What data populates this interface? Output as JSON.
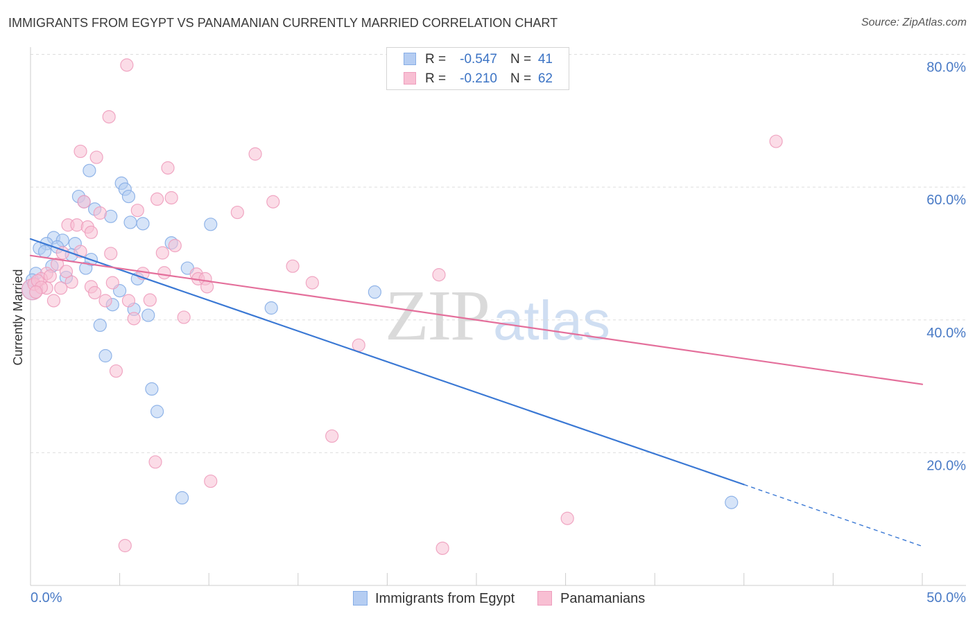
{
  "header": {
    "source": "Source: ZipAtlas.com"
  },
  "watermark": {
    "zip": "ZIP",
    "atlas": "atlas"
  },
  "stats_legend": [
    {
      "r_label": "R =",
      "r_value": "-0.547",
      "n_label": "N =",
      "n_value": "41"
    },
    {
      "r_label": "R =",
      "r_value": "-0.210",
      "n_label": "N =",
      "n_value": "62"
    }
  ],
  "colors": {
    "axis_label": "#4a7bc6",
    "axis_line": "#cccccc",
    "grid": "#dddddd",
    "text": "#333333"
  },
  "chart_data": {
    "type": "scatter",
    "title": "IMMIGRANTS FROM EGYPT VS PANAMANIAN CURRENTLY MARRIED CORRELATION CHART",
    "xlabel": "",
    "ylabel": "Currently Married",
    "xlim": [
      0,
      50
    ],
    "ylim": [
      0,
      81.1
    ],
    "grid": true,
    "x_ticks": [
      0,
      5,
      10,
      15,
      20,
      25,
      30,
      35,
      40,
      45,
      50
    ],
    "x_tick_labels": [
      {
        "value": 0,
        "label": "0.0%"
      },
      {
        "value": 50,
        "label": "50.0%"
      }
    ],
    "y_ticks": [
      {
        "value": 80,
        "label": "80.0%"
      },
      {
        "value": 60,
        "label": "60.0%"
      },
      {
        "value": 40,
        "label": "40.0%"
      },
      {
        "value": 20,
        "label": "20.0%"
      }
    ],
    "series": [
      {
        "name": "Immigrants from Egypt",
        "fill": "#b5cdf2",
        "stroke": "#86ade6",
        "line": "#3a78d4",
        "points": [
          [
            0.1,
            44.6
          ],
          [
            3.3,
            62.5
          ],
          [
            5.1,
            60.6
          ],
          [
            5.3,
            59.7
          ],
          [
            5.5,
            58.6
          ],
          [
            2.7,
            58.6
          ],
          [
            3.0,
            57.8
          ],
          [
            3.6,
            56.7
          ],
          [
            4.5,
            55.6
          ],
          [
            5.6,
            54.7
          ],
          [
            6.3,
            54.5
          ],
          [
            10.1,
            54.4
          ],
          [
            1.3,
            52.4
          ],
          [
            1.8,
            52.0
          ],
          [
            0.9,
            51.5
          ],
          [
            2.5,
            51.5
          ],
          [
            7.9,
            51.6
          ],
          [
            0.5,
            50.8
          ],
          [
            1.5,
            51.0
          ],
          [
            0.8,
            50.3
          ],
          [
            2.3,
            49.8
          ],
          [
            3.4,
            49.1
          ],
          [
            1.2,
            48.1
          ],
          [
            3.1,
            47.8
          ],
          [
            8.8,
            47.8
          ],
          [
            0.3,
            47.0
          ],
          [
            2.0,
            46.4
          ],
          [
            6.0,
            46.2
          ],
          [
            0.1,
            46.0
          ],
          [
            5.0,
            44.4
          ],
          [
            19.3,
            44.2
          ],
          [
            4.6,
            42.3
          ],
          [
            5.8,
            41.6
          ],
          [
            13.5,
            41.8
          ],
          [
            6.6,
            40.7
          ],
          [
            3.9,
            39.2
          ],
          [
            4.2,
            34.6
          ],
          [
            6.8,
            29.6
          ],
          [
            7.1,
            26.2
          ],
          [
            8.5,
            13.2
          ],
          [
            39.3,
            12.5
          ]
        ],
        "trend": {
          "solid": [
            [
              0,
              52.2
            ],
            [
              40,
              15.2
            ]
          ],
          "dashed": [
            [
              40,
              15.2
            ],
            [
              50,
              5.9
            ]
          ]
        }
      },
      {
        "name": "Panamanians",
        "fill": "#f8bfd3",
        "stroke": "#ee9dbd",
        "line": "#e46f9b",
        "points": [
          [
            0.1,
            44.6
          ],
          [
            5.4,
            78.4
          ],
          [
            4.4,
            70.6
          ],
          [
            41.8,
            66.9
          ],
          [
            2.8,
            65.4
          ],
          [
            3.7,
            64.5
          ],
          [
            12.6,
            65.0
          ],
          [
            7.7,
            62.9
          ],
          [
            7.9,
            58.4
          ],
          [
            7.1,
            58.2
          ],
          [
            13.6,
            57.8
          ],
          [
            3.0,
            57.8
          ],
          [
            3.9,
            56.1
          ],
          [
            6.0,
            56.5
          ],
          [
            11.6,
            56.2
          ],
          [
            2.1,
            54.3
          ],
          [
            2.6,
            54.3
          ],
          [
            3.2,
            54.0
          ],
          [
            3.4,
            53.2
          ],
          [
            8.1,
            51.2
          ],
          [
            2.8,
            50.3
          ],
          [
            4.5,
            50.0
          ],
          [
            7.4,
            50.1
          ],
          [
            1.8,
            50.1
          ],
          [
            1.5,
            48.4
          ],
          [
            14.7,
            48.1
          ],
          [
            0.9,
            47.0
          ],
          [
            6.3,
            47.0
          ],
          [
            7.5,
            47.1
          ],
          [
            9.3,
            46.9
          ],
          [
            22.9,
            46.8
          ],
          [
            9.4,
            46.2
          ],
          [
            9.8,
            46.2
          ],
          [
            0.6,
            46.2
          ],
          [
            2.3,
            45.7
          ],
          [
            4.6,
            45.6
          ],
          [
            15.8,
            45.6
          ],
          [
            0.2,
            45.4
          ],
          [
            9.9,
            45.0
          ],
          [
            3.4,
            45.0
          ],
          [
            0.9,
            44.8
          ],
          [
            1.7,
            44.8
          ],
          [
            3.6,
            44.1
          ],
          [
            4.2,
            42.9
          ],
          [
            5.5,
            42.9
          ],
          [
            6.7,
            43.0
          ],
          [
            1.3,
            42.9
          ],
          [
            8.6,
            40.4
          ],
          [
            5.8,
            40.2
          ],
          [
            18.4,
            36.2
          ],
          [
            4.8,
            32.3
          ],
          [
            16.9,
            22.5
          ],
          [
            7.0,
            18.6
          ],
          [
            10.1,
            15.7
          ],
          [
            30.1,
            10.1
          ],
          [
            5.3,
            6.0
          ],
          [
            23.1,
            5.6
          ],
          [
            0.4,
            45.9
          ],
          [
            1.1,
            46.6
          ],
          [
            0.6,
            44.9
          ],
          [
            2.0,
            47.3
          ],
          [
            0.3,
            44.2
          ]
        ],
        "trend": {
          "solid": [
            [
              0,
              49.7
            ],
            [
              50,
              30.3
            ]
          ],
          "dashed": []
        }
      }
    ]
  }
}
